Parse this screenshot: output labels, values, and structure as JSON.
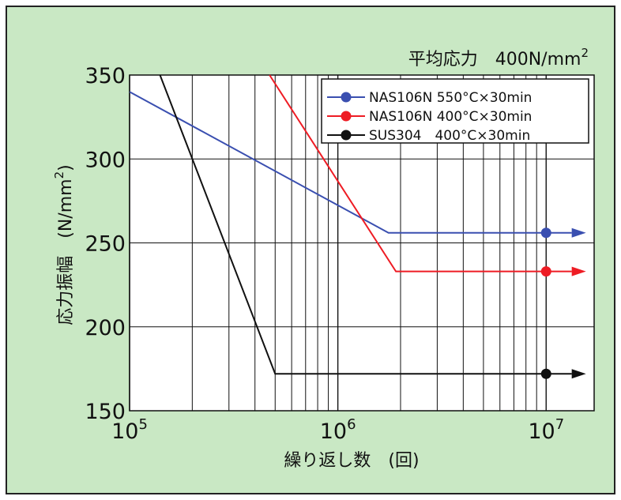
{
  "chart_data": {
    "type": "line",
    "title": "平均応力　400N/mm",
    "title_sup": "2",
    "xlabel": "繰り返し数　(回)",
    "ylabel": "応力振幅　(N/mm",
    "ylabel_sup": "2",
    "ylabel_tail": ")",
    "x_scale": "log",
    "xlim": [
      100000,
      17000000
    ],
    "ylim": [
      150,
      350
    ],
    "y_ticks": [
      150,
      200,
      250,
      300,
      350
    ],
    "x_ticks": [
      {
        "value": 100000,
        "base": "10",
        "exp": "5"
      },
      {
        "value": 1000000,
        "base": "10",
        "exp": "6"
      },
      {
        "value": 10000000,
        "base": "10",
        "exp": "7"
      }
    ],
    "grid": true,
    "legend_position": "top-right",
    "background": "#c9e8c4",
    "series": [
      {
        "name": "NAS106N 550°C×30min",
        "color": "#3a4fb0",
        "points": [
          [
            100000,
            340
          ],
          [
            1750000,
            256
          ],
          [
            15000000,
            256
          ]
        ],
        "marker_point": [
          10000000,
          256
        ]
      },
      {
        "name": "NAS106N 400°C×30min",
        "color": "#ee1c24",
        "points": [
          [
            470000,
            350
          ],
          [
            1900000,
            233
          ],
          [
            15000000,
            233
          ]
        ],
        "marker_point": [
          10000000,
          233
        ]
      },
      {
        "name": "SUS304　400°C×30min",
        "color": "#111111",
        "points": [
          [
            140000,
            350
          ],
          [
            500000,
            172
          ],
          [
            15000000,
            172
          ]
        ],
        "marker_point": [
          10000000,
          172
        ]
      }
    ]
  }
}
